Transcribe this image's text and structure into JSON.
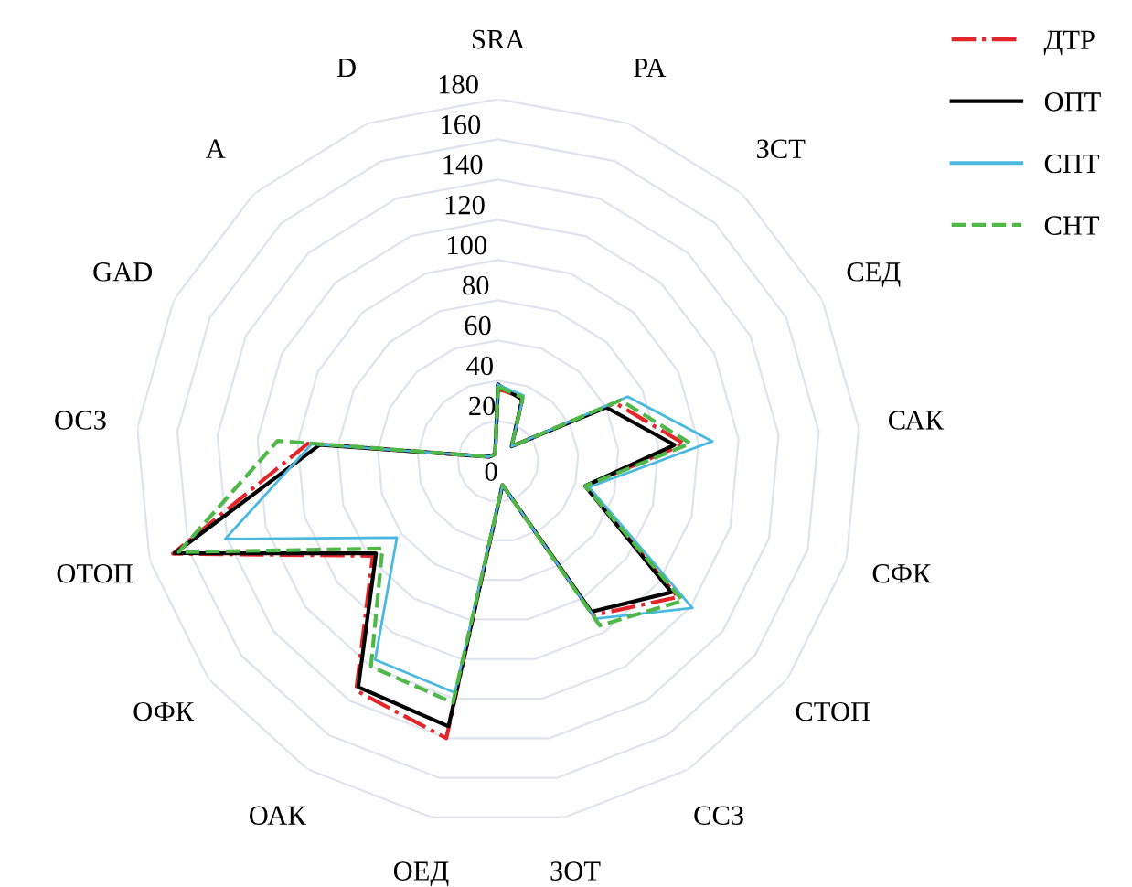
{
  "chart_data": {
    "type": "radar",
    "categories": [
      "SRA",
      "PA",
      "ЗСТ",
      "СЕД",
      "САК",
      "СФК",
      "СТОП",
      "ССЗ",
      "ЗОТ",
      "ОЕД",
      "ОАК",
      "ОФК",
      "ОТОП",
      "ОСЗ",
      "GAD",
      "A",
      "D"
    ],
    "ylim": [
      0,
      180
    ],
    "yticks": [
      0,
      20,
      40,
      60,
      80,
      100,
      120,
      140,
      160,
      180
    ],
    "grid": true,
    "legend": "top right",
    "marker": "none",
    "series": [
      {
        "name": "ДТР",
        "color": "#e3262a",
        "line_style": "dashdot",
        "values": [
          36,
          34,
          10,
          65,
          93,
          45,
          112,
          90,
          12,
          140,
          134,
          78,
          168,
          95,
          5,
          4,
          4
        ]
      },
      {
        "name": "ОПТ",
        "color": "#000000",
        "line_style": "solid",
        "values": [
          38,
          33,
          10,
          60,
          88,
          45,
          108,
          88,
          12,
          134,
          132,
          76,
          167,
          89,
          5,
          4,
          4
        ]
      },
      {
        "name": "СПТ",
        "color": "#4bb8e0",
        "line_style": "solid",
        "values": [
          38,
          35,
          10,
          72,
          107,
          47,
          121,
          92,
          12,
          117,
          116,
          63,
          141,
          93,
          5,
          4,
          4
        ]
      },
      {
        "name": "СНТ",
        "color": "#50b848",
        "line_style": "dashed",
        "values": [
          37,
          34,
          10,
          68,
          96,
          45,
          115,
          96,
          12,
          122,
          120,
          72,
          165,
          110,
          5,
          4,
          4
        ]
      }
    ]
  }
}
